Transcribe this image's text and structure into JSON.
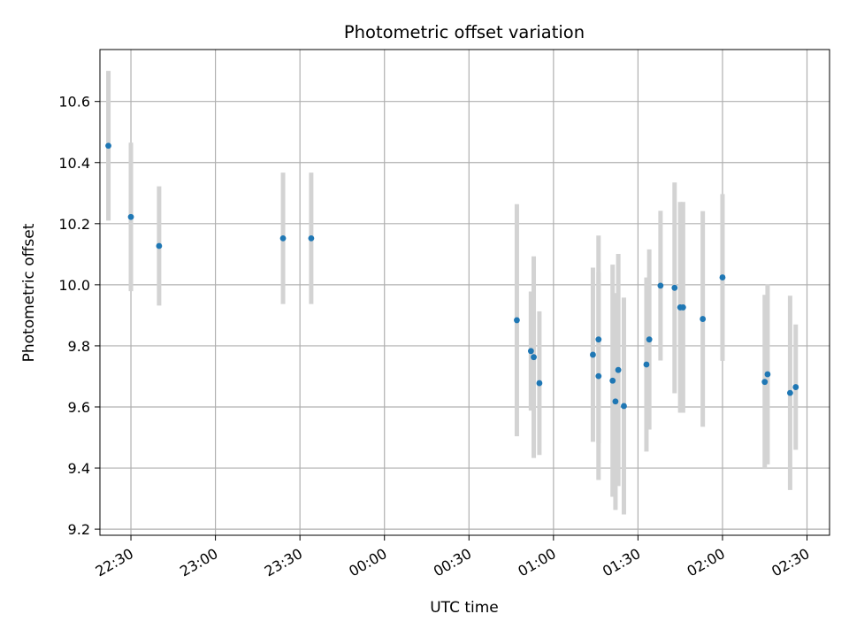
{
  "chart_data": {
    "type": "scatter",
    "title": "Photometric offset variation",
    "xlabel": "UTC time",
    "ylabel": "Photometric offset",
    "x_unit": "UTC time (hh:mm, continuing past midnight)",
    "xlim": [
      "22:19",
      "02:38"
    ],
    "ylim": [
      9.18,
      10.77
    ],
    "x_ticks": [
      "22:30",
      "23:00",
      "23:30",
      "00:00",
      "00:30",
      "01:00",
      "01:30",
      "02:00",
      "02:30"
    ],
    "y_ticks": [
      9.2,
      9.4,
      9.6,
      9.8,
      10.0,
      10.2,
      10.4,
      10.6
    ],
    "y_tick_labels": [
      "9.2",
      "9.4",
      "9.6",
      "9.8",
      "10.0",
      "10.2",
      "10.4",
      "10.6"
    ],
    "grid": true,
    "colors": {
      "point": "#1f77b4",
      "errorbar": "#d3d3d3",
      "grid": "#b0b0b0"
    },
    "series": [
      {
        "points": [
          {
            "x": "22:22",
            "y": 10.455,
            "err": 0.245
          },
          {
            "x": "22:30",
            "y": 10.222,
            "err": 0.243
          },
          {
            "x": "22:40",
            "y": 10.127,
            "err": 0.195
          },
          {
            "x": "23:24",
            "y": 10.152,
            "err": 0.215
          },
          {
            "x": "23:34",
            "y": 10.152,
            "err": 0.215
          },
          {
            "x": "00:47",
            "y": 9.884,
            "err": 0.38
          },
          {
            "x": "00:52",
            "y": 9.783,
            "err": 0.195
          },
          {
            "x": "00:53",
            "y": 9.763,
            "err": 0.33
          },
          {
            "x": "00:55",
            "y": 9.678,
            "err": 0.235
          },
          {
            "x": "01:14",
            "y": 9.771,
            "err": 0.285
          },
          {
            "x": "01:16",
            "y": 9.821,
            "err": 0.34
          },
          {
            "x": "01:16",
            "y": 9.701,
            "err": 0.34
          },
          {
            "x": "01:21",
            "y": 9.686,
            "err": 0.38
          },
          {
            "x": "01:22",
            "y": 9.618,
            "err": 0.355
          },
          {
            "x": "01:23",
            "y": 9.721,
            "err": 0.38
          },
          {
            "x": "01:25",
            "y": 9.603,
            "err": 0.355
          },
          {
            "x": "01:33",
            "y": 9.739,
            "err": 0.285
          },
          {
            "x": "01:34",
            "y": 9.821,
            "err": 0.295
          },
          {
            "x": "01:38",
            "y": 9.997,
            "err": 0.245
          },
          {
            "x": "01:43",
            "y": 9.99,
            "err": 0.345
          },
          {
            "x": "01:45",
            "y": 9.926,
            "err": 0.345
          },
          {
            "x": "01:46",
            "y": 9.926,
            "err": 0.345
          },
          {
            "x": "01:53",
            "y": 9.888,
            "err": 0.353
          },
          {
            "x": "02:00",
            "y": 10.024,
            "err": 0.273
          },
          {
            "x": "02:15",
            "y": 9.682,
            "err": 0.285
          },
          {
            "x": "02:16",
            "y": 9.707,
            "err": 0.295
          },
          {
            "x": "02:24",
            "y": 9.646,
            "err": 0.318
          },
          {
            "x": "02:26",
            "y": 9.665,
            "err": 0.205
          }
        ]
      }
    ]
  }
}
